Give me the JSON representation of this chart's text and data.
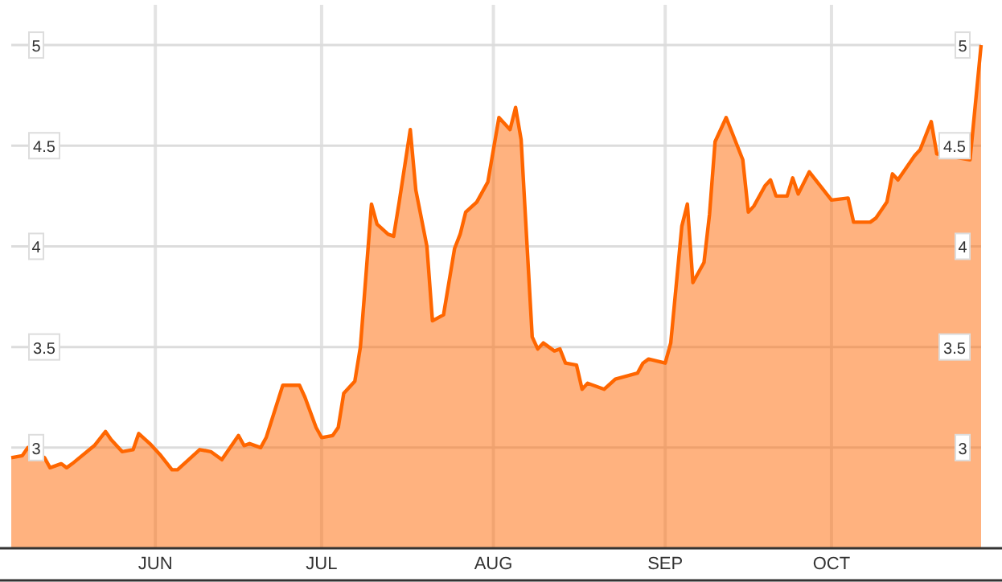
{
  "chart_data": {
    "type": "area",
    "x": [
      "--05-06",
      "--05-08",
      "--05-09",
      "--05-12",
      "--05-13",
      "--05-15",
      "--05-16",
      "--05-17",
      "--05-21",
      "--05-23",
      "--05-24",
      "--05-26",
      "--05-28",
      "--05-29",
      "--05-31",
      "--06-02",
      "--06-04",
      "--06-05",
      "--06-09",
      "--06-11",
      "--06-13",
      "--06-16",
      "--06-17",
      "--06-18",
      "--06-20",
      "--06-21",
      "--06-24",
      "--06-27",
      "--06-28",
      "--06-30",
      "--07-01",
      "--07-03",
      "--07-04",
      "--07-05",
      "--07-07",
      "--07-08",
      "--07-10",
      "--07-11",
      "--07-13",
      "--07-14",
      "--07-15",
      "--07-17",
      "--07-18",
      "--07-20",
      "--07-21",
      "--07-23",
      "--07-25",
      "--07-26",
      "--07-27",
      "--07-29",
      "--07-31",
      "--08-02",
      "--08-04",
      "--08-05",
      "--08-06",
      "--08-08",
      "--08-09",
      "--08-10",
      "--08-12",
      "--08-13",
      "--08-14",
      "--08-16",
      "--08-17",
      "--08-18",
      "--08-21",
      "--08-23",
      "--08-27",
      "--08-28",
      "--08-29",
      "--09-01",
      "--09-02",
      "--09-04",
      "--09-05",
      "--09-06",
      "--09-08",
      "--09-09",
      "--09-10",
      "--09-12",
      "--09-15",
      "--09-16",
      "--09-17",
      "--09-19",
      "--09-20",
      "--09-21",
      "--09-23",
      "--09-24",
      "--09-25",
      "--09-27",
      "--09-29",
      "--10-01",
      "--10-04",
      "--10-05",
      "--10-08",
      "--10-09",
      "--10-11",
      "--10-12",
      "--10-13",
      "--10-16",
      "--10-17",
      "--10-19",
      "--10-20",
      "--10-26",
      "--10-28"
    ],
    "series": [
      {
        "color": "#ff6600",
        "values": [
          2.95,
          2.96,
          3.0,
          2.95,
          2.9,
          2.92,
          2.9,
          2.92,
          3.01,
          3.08,
          3.04,
          2.98,
          2.99,
          3.07,
          3.02,
          2.96,
          2.89,
          2.89,
          2.99,
          2.98,
          2.94,
          3.06,
          3.01,
          3.02,
          3.0,
          3.05,
          3.31,
          3.31,
          3.25,
          3.1,
          3.05,
          3.06,
          3.1,
          3.27,
          3.33,
          3.5,
          4.21,
          4.11,
          4.06,
          4.05,
          4.22,
          4.58,
          4.28,
          4.0,
          3.63,
          3.66,
          3.99,
          4.06,
          4.17,
          4.22,
          4.32,
          4.64,
          4.58,
          4.69,
          4.53,
          3.55,
          3.49,
          3.52,
          3.48,
          3.49,
          3.42,
          3.41,
          3.29,
          3.32,
          3.29,
          3.34,
          3.37,
          3.42,
          3.44,
          3.42,
          3.52,
          4.1,
          4.21,
          3.82,
          3.92,
          4.16,
          4.52,
          4.64,
          4.43,
          4.17,
          4.2,
          4.3,
          4.33,
          4.25,
          4.25,
          4.34,
          4.26,
          4.37,
          4.3,
          4.23,
          4.24,
          4.12,
          4.12,
          4.14,
          4.22,
          4.36,
          4.33,
          4.45,
          4.48,
          4.62,
          4.46,
          4.43,
          5.0
        ]
      }
    ],
    "xlim": [
      "--05-06",
      "--10-28"
    ],
    "xticks": [
      {
        "value": "--06-01",
        "label": "JUN"
      },
      {
        "value": "--07-01",
        "label": "JUL"
      },
      {
        "value": "--08-01",
        "label": "AUG"
      },
      {
        "value": "--09-01",
        "label": "SEP"
      },
      {
        "value": "--10-01",
        "label": "OCT"
      }
    ],
    "ylim": [
      2.5,
      5.2
    ],
    "yticks": [
      3,
      3.5,
      4,
      4.5,
      5
    ],
    "y2lim": [
      2.5,
      5.2
    ],
    "y2ticks": [
      3,
      3.5,
      4,
      4.5,
      5
    ],
    "grid": true
  }
}
